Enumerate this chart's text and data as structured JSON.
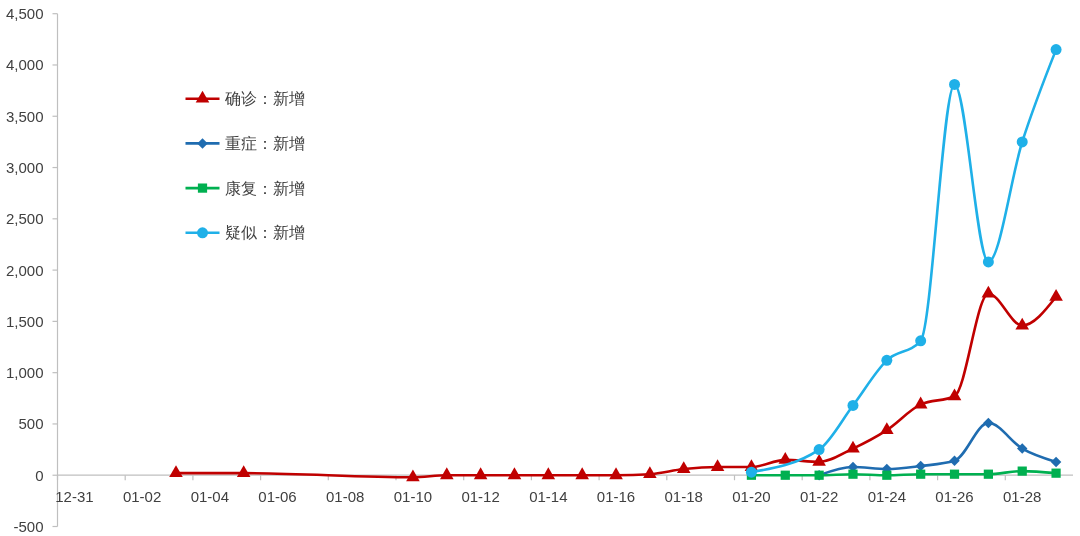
{
  "chart_data": {
    "type": "line",
    "categories": [
      "12-31",
      null,
      "01-02",
      null,
      "01-04",
      null,
      "01-06",
      null,
      "01-08",
      null,
      "01-10",
      null,
      "01-12",
      null,
      "01-14",
      null,
      "01-16",
      null,
      "01-18",
      null,
      "01-20",
      null,
      "01-22",
      null,
      "01-24",
      null,
      "01-26",
      null,
      "01-28",
      null
    ],
    "ylim": [
      -500,
      4500
    ],
    "yticks": [
      -500,
      0,
      500,
      {
        "value": 1000,
        "label": "1,000"
      },
      {
        "value": 1500,
        "label": "1,500"
      },
      {
        "value": 2000,
        "label": "2,000"
      },
      {
        "value": 2500,
        "label": "2,500"
      },
      {
        "value": 3000,
        "label": "3,000"
      },
      {
        "value": 3500,
        "label": "3,500"
      },
      {
        "value": 4000,
        "label": "4,000"
      },
      {
        "value": 4500,
        "label": "4,500"
      }
    ],
    "legend": "top left",
    "series": [
      {
        "name": "确诊：新增",
        "color": "#c00000",
        "marker": "triangle",
        "values": [
          null,
          null,
          null,
          20,
          null,
          20,
          null,
          null,
          null,
          null,
          -20,
          0,
          0,
          0,
          0,
          0,
          0,
          10,
          60,
          80,
          80,
          150,
          130,
          260,
          440,
          690,
          770,
          1770,
          1460,
          1740
        ]
      },
      {
        "name": "重症：新增",
        "color": "#1f6cb0",
        "marker": "diamond",
        "values": [
          null,
          null,
          null,
          null,
          null,
          null,
          null,
          null,
          null,
          null,
          null,
          null,
          null,
          null,
          null,
          null,
          null,
          null,
          null,
          null,
          null,
          null,
          0,
          80,
          60,
          90,
          140,
          510,
          260,
          130
        ]
      },
      {
        "name": "康复：新增",
        "color": "#00b050",
        "marker": "square",
        "values": [
          null,
          null,
          null,
          null,
          null,
          null,
          null,
          null,
          null,
          null,
          null,
          null,
          null,
          null,
          null,
          null,
          null,
          null,
          null,
          null,
          0,
          0,
          0,
          10,
          0,
          10,
          10,
          10,
          40,
          20
        ]
      },
      {
        "name": "疑似：新增",
        "color": "#1fb0e8",
        "marker": "circle",
        "values": [
          null,
          null,
          null,
          null,
          null,
          null,
          null,
          null,
          null,
          null,
          null,
          null,
          null,
          null,
          null,
          null,
          null,
          null,
          null,
          null,
          30,
          null,
          250,
          680,
          1120,
          1310,
          3810,
          2080,
          3250,
          4150
        ]
      }
    ]
  }
}
